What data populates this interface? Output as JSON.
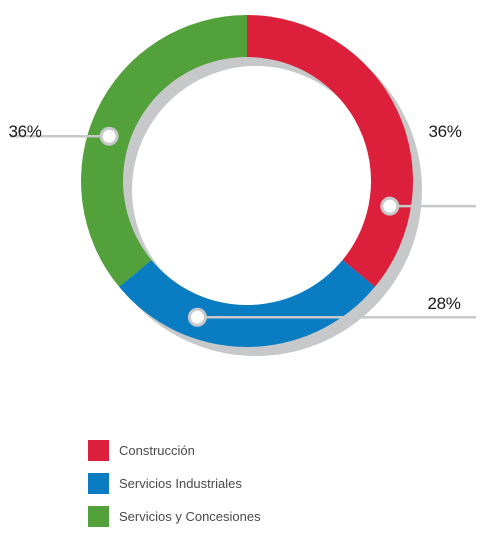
{
  "chart_data": {
    "type": "pie",
    "donut": true,
    "categories": [
      "Construcción",
      "Servicios Industriales",
      "Servicios y Concesiones"
    ],
    "values": [
      36,
      28,
      36
    ],
    "labels": [
      "36%",
      "28%",
      "36%"
    ],
    "colors": [
      "#dc1f3a",
      "#0a7cc2",
      "#52a13a"
    ],
    "legend_position": "bottom-left"
  }
}
